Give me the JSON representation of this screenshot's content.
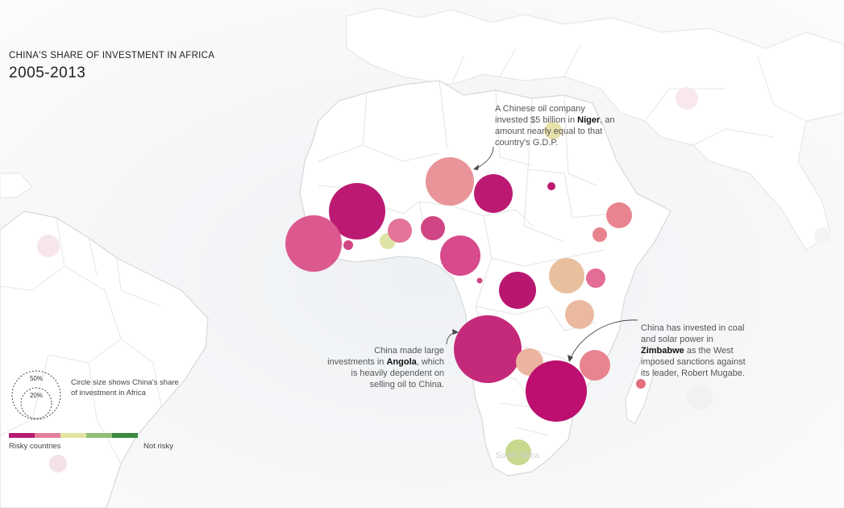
{
  "header": {
    "title": "CHINA'S SHARE OF INVESTMENT IN AFRICA",
    "years": "2005-2013"
  },
  "annotations": {
    "niger": {
      "pre": "A Chinese oil company invested $5 billion in ",
      "country": "Niger",
      "post": ", an amount nearly equal to that country's G.D.P."
    },
    "angola": {
      "pre": "China made large investments in ",
      "country": "Angola",
      "post": ", which is heavily dependent on selling oil to China."
    },
    "zimbabwe": {
      "pre": "China has invested in coal and solar power in ",
      "country": "Zimbabwe",
      "post": " as the West imposed sanctions against its leader, Robert Mugabe."
    }
  },
  "legend": {
    "size_text": "Circle size shows China's share of investment in Africa",
    "size_large_label": "50%",
    "size_small_label": "20%",
    "risk_low_label": "Risky countries",
    "risk_high_label": "Not risky",
    "risk_colors": [
      "#b51a72",
      "#e37f9a",
      "#e3e3a1",
      "#8fbf78",
      "#3a8a3f"
    ]
  },
  "map_labels": {
    "south_africa_partial": "South Africa"
  },
  "colors": {
    "land": "#ffffff",
    "border": "#dedede",
    "background": "#fbfbfc"
  }
}
